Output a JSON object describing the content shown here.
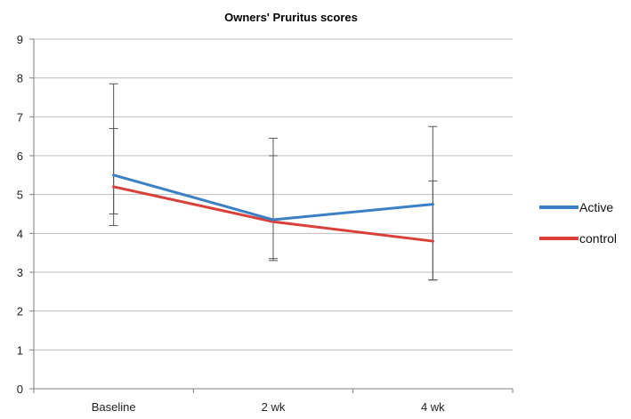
{
  "chart_data": {
    "type": "line",
    "title": "Owners' Pruritus scores",
    "xlabel": "",
    "ylabel": "",
    "categories": [
      "Baseline",
      "2 wk",
      "4 wk"
    ],
    "ylim": [
      0,
      9
    ],
    "yticks": [
      0,
      1,
      2,
      3,
      4,
      5,
      6,
      7,
      8,
      9
    ],
    "grid": true,
    "legend_position": "right",
    "series": [
      {
        "name": "Active",
        "color": "#3b7fc4",
        "values": [
          5.5,
          4.35,
          4.75
        ],
        "error_low": [
          4.5,
          3.35,
          2.8
        ],
        "error_high": [
          6.7,
          6.45,
          6.75
        ]
      },
      {
        "name": "control",
        "color": "#d9403a",
        "values": [
          5.2,
          4.3,
          3.8
        ],
        "error_low": [
          4.2,
          3.3,
          2.8
        ],
        "error_high": [
          7.85,
          6.0,
          5.35
        ]
      }
    ]
  }
}
